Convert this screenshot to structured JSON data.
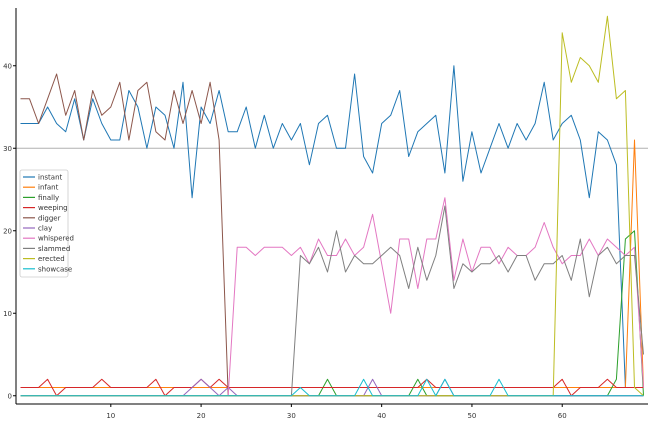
{
  "chart_data": {
    "type": "line",
    "title": "",
    "xlabel": "",
    "ylabel": "",
    "xlim": [
      -0.5,
      69.5
    ],
    "ylim": [
      -1,
      47
    ],
    "grid": false,
    "hline": 30,
    "legend_placement": "left-middle",
    "xticks": [
      10,
      20,
      30,
      40,
      50,
      60
    ],
    "yticks": [
      0,
      10,
      20,
      30,
      40
    ],
    "x": [
      0,
      1,
      2,
      3,
      4,
      5,
      6,
      7,
      8,
      9,
      10,
      11,
      12,
      13,
      14,
      15,
      16,
      17,
      18,
      19,
      20,
      21,
      22,
      23,
      24,
      25,
      26,
      27,
      28,
      29,
      30,
      31,
      32,
      33,
      34,
      35,
      36,
      37,
      38,
      39,
      40,
      41,
      42,
      43,
      44,
      45,
      46,
      47,
      48,
      49,
      50,
      51,
      52,
      53,
      54,
      55,
      56,
      57,
      58,
      59,
      60,
      61,
      62,
      63,
      64,
      65,
      66,
      67,
      68,
      69
    ],
    "series": [
      {
        "name": "instant",
        "color": "#1f77b4",
        "values": [
          33,
          33,
          33,
          35,
          33,
          32,
          36,
          31,
          36,
          33,
          31,
          31,
          37,
          35,
          30,
          35,
          34,
          30,
          38,
          24,
          35,
          33,
          37,
          32,
          32,
          35,
          30,
          34,
          30,
          33,
          31,
          33,
          28,
          33,
          34,
          30,
          30,
          39,
          29,
          27,
          33,
          34,
          37,
          29,
          32,
          33,
          34,
          27,
          40,
          26,
          32,
          27,
          30,
          33,
          30,
          33,
          31,
          33,
          38,
          31,
          33,
          34,
          31,
          24,
          32,
          31,
          28,
          1,
          1,
          1
        ]
      },
      {
        "name": "infant",
        "color": "#ff7f0e",
        "values": [
          1,
          1,
          1,
          1,
          1,
          1,
          1,
          1,
          1,
          1,
          1,
          1,
          1,
          1,
          1,
          1,
          1,
          1,
          1,
          1,
          1,
          1,
          1,
          1,
          1,
          1,
          1,
          1,
          1,
          1,
          1,
          1,
          1,
          1,
          1,
          1,
          1,
          1,
          1,
          1,
          1,
          1,
          1,
          1,
          1,
          1,
          1,
          1,
          1,
          1,
          1,
          1,
          1,
          1,
          1,
          1,
          1,
          1,
          1,
          1,
          1,
          1,
          1,
          1,
          1,
          1,
          1,
          1,
          31,
          1
        ]
      },
      {
        "name": "finally",
        "color": "#2ca02c",
        "values": [
          0,
          0,
          0,
          0,
          0,
          0,
          0,
          0,
          0,
          0,
          0,
          0,
          0,
          0,
          0,
          0,
          0,
          0,
          0,
          0,
          0,
          0,
          0,
          0,
          0,
          0,
          0,
          0,
          0,
          0,
          0,
          0,
          0,
          0,
          2,
          0,
          0,
          0,
          0,
          0,
          0,
          0,
          0,
          0,
          2,
          0,
          0,
          0,
          0,
          0,
          0,
          0,
          0,
          0,
          0,
          0,
          0,
          0,
          0,
          0,
          0,
          0,
          0,
          0,
          0,
          0,
          2,
          19,
          20,
          0
        ]
      },
      {
        "name": "weeping",
        "color": "#d62728",
        "values": [
          1,
          1,
          1,
          2,
          0,
          1,
          1,
          1,
          1,
          2,
          1,
          1,
          1,
          1,
          1,
          2,
          0,
          1,
          1,
          1,
          2,
          1,
          2,
          1,
          1,
          1,
          1,
          1,
          1,
          1,
          1,
          1,
          1,
          1,
          1,
          1,
          1,
          1,
          1,
          1,
          1,
          1,
          1,
          1,
          1,
          2,
          1,
          1,
          1,
          1,
          1,
          1,
          1,
          1,
          1,
          1,
          1,
          1,
          1,
          1,
          2,
          0,
          1,
          1,
          1,
          2,
          1,
          1,
          1,
          1
        ]
      },
      {
        "name": "digger",
        "color": "#8c564b",
        "values": [
          36,
          36,
          33,
          36,
          39,
          34,
          37,
          31,
          37,
          34,
          35,
          38,
          31,
          37,
          38,
          32,
          31,
          37,
          33,
          37,
          33,
          38,
          31,
          0,
          0,
          0,
          0,
          0,
          0,
          0,
          0,
          0,
          0,
          0,
          0,
          0,
          0,
          0,
          0,
          0,
          0,
          0,
          0,
          0,
          0,
          0,
          0,
          0,
          0,
          0,
          0,
          0,
          0,
          0,
          0,
          0,
          0,
          0,
          0,
          0,
          0,
          0,
          0,
          0,
          0,
          0,
          0,
          0,
          0,
          0
        ]
      },
      {
        "name": "clay",
        "color": "#9467bd",
        "values": [
          0,
          0,
          0,
          0,
          0,
          0,
          0,
          0,
          0,
          0,
          0,
          0,
          0,
          0,
          0,
          0,
          0,
          0,
          0,
          1,
          2,
          1,
          0,
          1,
          0,
          0,
          0,
          0,
          0,
          0,
          0,
          0,
          0,
          0,
          0,
          0,
          0,
          0,
          0,
          2,
          0,
          0,
          0,
          0,
          0,
          0,
          0,
          2,
          0,
          0,
          0,
          0,
          0,
          0,
          0,
          0,
          0,
          0,
          0,
          0,
          0,
          0,
          0,
          0,
          0,
          0,
          0,
          0,
          0,
          0
        ]
      },
      {
        "name": "whispered",
        "color": "#e377c2",
        "values": [
          0,
          0,
          0,
          0,
          0,
          0,
          0,
          0,
          0,
          0,
          0,
          0,
          0,
          0,
          0,
          0,
          0,
          0,
          0,
          0,
          0,
          0,
          0,
          0,
          18,
          18,
          17,
          18,
          18,
          18,
          17,
          18,
          16,
          19,
          17,
          17,
          19,
          17,
          18,
          22,
          16,
          10,
          19,
          19,
          13,
          19,
          19,
          24,
          14,
          19,
          15,
          18,
          18,
          16,
          18,
          17,
          17,
          18,
          21,
          18,
          16,
          17,
          17,
          19,
          17,
          19,
          18,
          17,
          18,
          1
        ]
      },
      {
        "name": "slammed",
        "color": "#7f7f7f",
        "values": [
          0,
          0,
          0,
          0,
          0,
          0,
          0,
          0,
          0,
          0,
          0,
          0,
          0,
          0,
          0,
          0,
          0,
          0,
          0,
          0,
          0,
          0,
          0,
          0,
          0,
          0,
          0,
          0,
          0,
          0,
          0,
          17,
          16,
          18,
          15,
          20,
          15,
          17,
          16,
          16,
          17,
          18,
          17,
          13,
          18,
          14,
          17,
          23,
          13,
          16,
          15,
          16,
          16,
          17,
          15,
          17,
          17,
          14,
          16,
          16,
          17,
          14,
          19,
          12,
          17,
          18,
          16,
          17,
          17,
          5
        ]
      },
      {
        "name": "erected",
        "color": "#bcbd22",
        "values": [
          0,
          0,
          0,
          0,
          0,
          0,
          0,
          0,
          0,
          0,
          0,
          0,
          0,
          0,
          0,
          0,
          0,
          0,
          0,
          0,
          0,
          0,
          0,
          0,
          0,
          0,
          0,
          0,
          0,
          0,
          0,
          0,
          0,
          0,
          0,
          0,
          0,
          0,
          0,
          0,
          0,
          0,
          0,
          0,
          0,
          0,
          0,
          0,
          0,
          0,
          0,
          0,
          0,
          0,
          0,
          0,
          0,
          0,
          0,
          0,
          44,
          38,
          41,
          40,
          38,
          46,
          36,
          37,
          1,
          0
        ]
      },
      {
        "name": "showcase",
        "color": "#17becf",
        "values": [
          0,
          0,
          0,
          0,
          0,
          0,
          0,
          0,
          0,
          0,
          0,
          0,
          0,
          0,
          0,
          0,
          0,
          0,
          0,
          0,
          0,
          0,
          0,
          0,
          0,
          0,
          0,
          0,
          0,
          0,
          0,
          1,
          0,
          0,
          0,
          0,
          0,
          0,
          2,
          0,
          0,
          0,
          0,
          0,
          0,
          2,
          0,
          2,
          0,
          0,
          0,
          0,
          0,
          2,
          0,
          0,
          0,
          0,
          0,
          0,
          0,
          0,
          0,
          0,
          0,
          0,
          0,
          0,
          0,
          0
        ]
      }
    ]
  }
}
